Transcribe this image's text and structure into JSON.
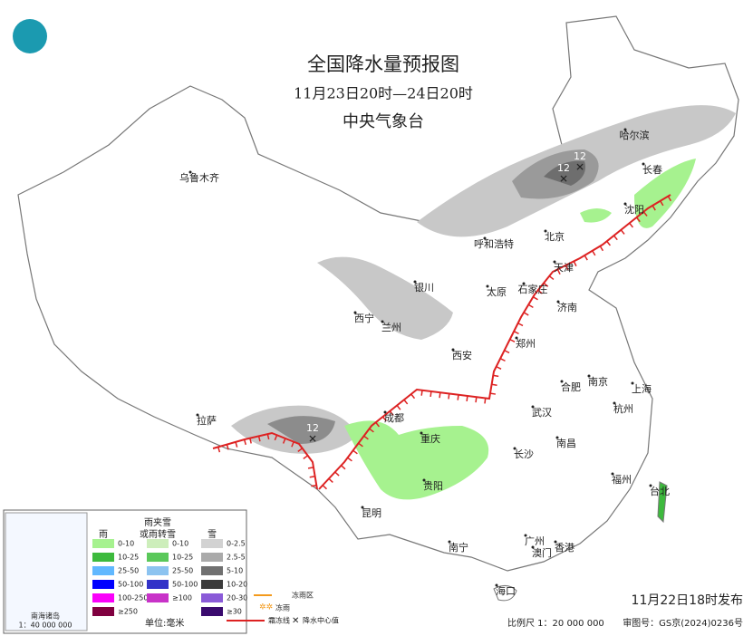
{
  "header": {
    "title": "全国降水量预报图",
    "subtitle": "11月23日20时—24日20时",
    "agency": "中央气象台"
  },
  "cities": [
    "乌鲁木齐",
    "哈尔滨",
    "长春",
    "沈阳",
    "北京",
    "呼和浩特",
    "天津",
    "银川",
    "太原",
    "石家庄",
    "济南",
    "西宁",
    "兰州",
    "郑州",
    "西安",
    "合肥",
    "南京",
    "上海",
    "拉萨",
    "成都",
    "武汉",
    "杭州",
    "重庆",
    "长沙",
    "南昌",
    "贵阳",
    "福州",
    "台北",
    "昆明",
    "南宁",
    "广州",
    "澳门",
    "香港",
    "海口"
  ],
  "center_values": [
    "12",
    "12",
    "12"
  ],
  "legend": {
    "rain": {
      "title": "雨",
      "items": [
        {
          "label": "0-10",
          "color": "#a6f28f"
        },
        {
          "label": "10-25",
          "color": "#3dba3d"
        },
        {
          "label": "25-50",
          "color": "#61b8ff"
        },
        {
          "label": "50-100",
          "color": "#0000ff"
        },
        {
          "label": "100-250",
          "color": "#fa00fa"
        },
        {
          "label": "≥250",
          "color": "#800040"
        }
      ]
    },
    "sleet": {
      "title_lines": [
        "雨夹雪",
        "或雨转雪"
      ],
      "items": [
        {
          "label": "0-10",
          "color": "#cdeebb"
        },
        {
          "label": "10-25",
          "color": "#5ac85a"
        },
        {
          "label": "25-50",
          "color": "#8cc3f0"
        },
        {
          "label": "50-100",
          "color": "#3232c8"
        },
        {
          "label": "≥100",
          "color": "#c832c8"
        }
      ]
    },
    "snow": {
      "title": "雪",
      "items": [
        {
          "label": "0-2.5",
          "color": "#d2d2d2"
        },
        {
          "label": "2.5-5",
          "color": "#aaaaaa"
        },
        {
          "label": "5-10",
          "color": "#707070"
        },
        {
          "label": "10-20",
          "color": "#3c3c3c"
        },
        {
          "label": "20-30",
          "color": "#8a5ad8"
        },
        {
          "label": "≥30",
          "color": "#3a0a6e"
        }
      ]
    },
    "unit": "单位:毫米",
    "symbols": [
      "冻雨区",
      "冻雨",
      "霜冻线",
      "降水中心值"
    ],
    "inset_title": "南海诸岛",
    "inset_scale": "1：40 000 000"
  },
  "footer": {
    "issued": "11月22日18时发布",
    "scale": "比例尺 1：20 000 000",
    "approval": "审图号：GS京(2024)0236号"
  }
}
